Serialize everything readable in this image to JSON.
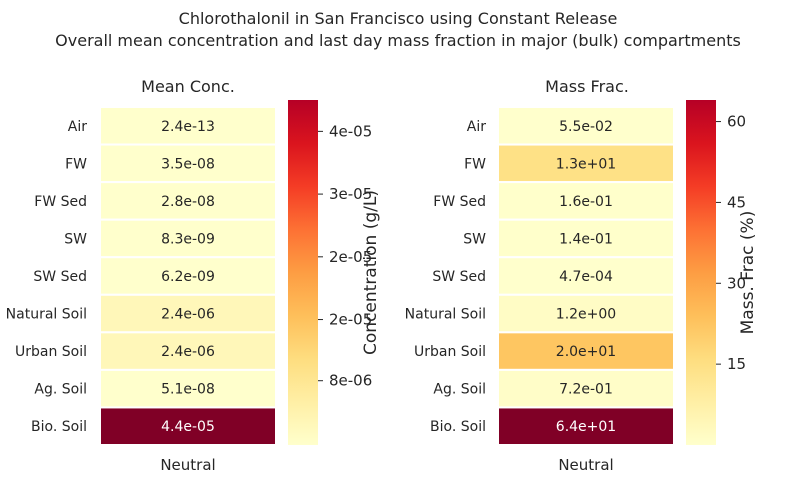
{
  "header": {
    "title_line1": "Chlorothalonil in San Francisco using Constant Release",
    "title_line2": "Overall mean concentration and last day mass fraction in major (bulk) compartments"
  },
  "chart_data": [
    {
      "type": "heatmap",
      "title": "Mean Conc.",
      "xlabel": "Neutral",
      "columns": [
        "Neutral"
      ],
      "rows": [
        "Air",
        "FW",
        "FW Sed",
        "SW",
        "SW Sed",
        "Natural Soil",
        "Urban Soil",
        "Ag. Soil",
        "Bio. Soil"
      ],
      "values": [
        2.4e-13,
        3.5e-08,
        2.8e-08,
        8.3e-09,
        6.2e-09,
        2.4e-06,
        2.4e-06,
        5.1e-08,
        4.4e-05
      ],
      "cell_labels": [
        "2.4e-13",
        "3.5e-08",
        "2.8e-08",
        "8.3e-09",
        "6.2e-09",
        "2.4e-06",
        "2.4e-06",
        "5.1e-08",
        "4.4e-05"
      ],
      "colorbar": {
        "label": "Concentration (g/L)",
        "range": [
          2.4e-13,
          4.4e-05
        ],
        "ticks": [
          8e-06,
          2e-05,
          2e-05,
          3e-05,
          4e-05
        ],
        "tick_labels": [
          "8e-06",
          "2e-05",
          "2e-05",
          "3e-05",
          "4e-05"
        ],
        "tick_positions": [
          8.2e-06,
          1.6e-05,
          2.4e-05,
          3.2e-05,
          4e-05
        ],
        "colormap": "YlOrRd"
      }
    },
    {
      "type": "heatmap",
      "title": "Mass Frac.",
      "xlabel": "Neutral",
      "columns": [
        "Neutral"
      ],
      "rows": [
        "Air",
        "FW",
        "FW Sed",
        "SW",
        "SW Sed",
        "Natural Soil",
        "Urban Soil",
        "Ag. Soil",
        "Bio. Soil"
      ],
      "values": [
        0.055,
        13,
        0.16,
        0.14,
        0.00047,
        1.2,
        20,
        0.72,
        64
      ],
      "cell_labels": [
        "5.5e-02",
        "1.3e+01",
        "1.6e-01",
        "1.4e-01",
        "4.7e-04",
        "1.2e+00",
        "2.0e+01",
        "7.2e-01",
        "6.4e+01"
      ],
      "colorbar": {
        "label": "Mass. Frac (%)",
        "range": [
          0.00047,
          64
        ],
        "ticks": [
          15,
          30,
          45,
          60
        ],
        "tick_labels": [
          "15",
          "30",
          "45",
          "60"
        ],
        "tick_positions": [
          15,
          30,
          45,
          60
        ],
        "colormap": "YlOrRd"
      }
    }
  ]
}
